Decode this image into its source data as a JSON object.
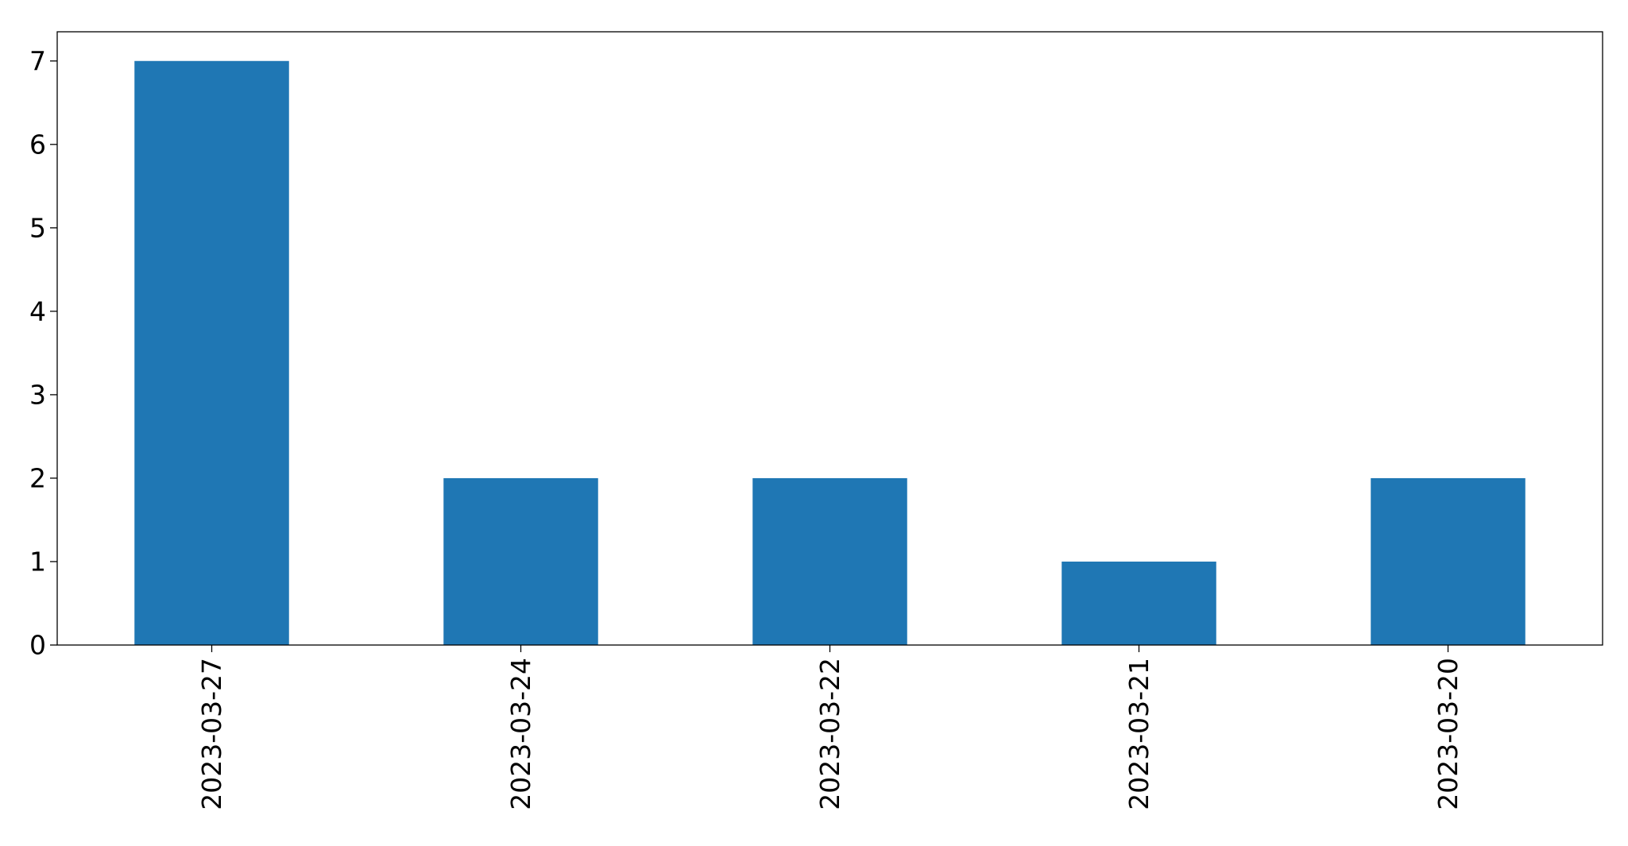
{
  "chart_data": {
    "type": "bar",
    "title": "",
    "xlabel": "",
    "ylabel": "",
    "categories": [
      "2023-03-27",
      "2023-03-24",
      "2023-03-22",
      "2023-03-21",
      "2023-03-20"
    ],
    "values": [
      7,
      2,
      2,
      1,
      2
    ],
    "ylim": [
      0,
      7.35
    ],
    "yticks": [
      0,
      1,
      2,
      3,
      4,
      5,
      6,
      7
    ],
    "grid": false,
    "legend": "none",
    "x_tick_label_rotation": "vertical",
    "colors": {
      "bar": "#1f77b4",
      "axes": "#000000",
      "background": "#ffffff"
    }
  }
}
